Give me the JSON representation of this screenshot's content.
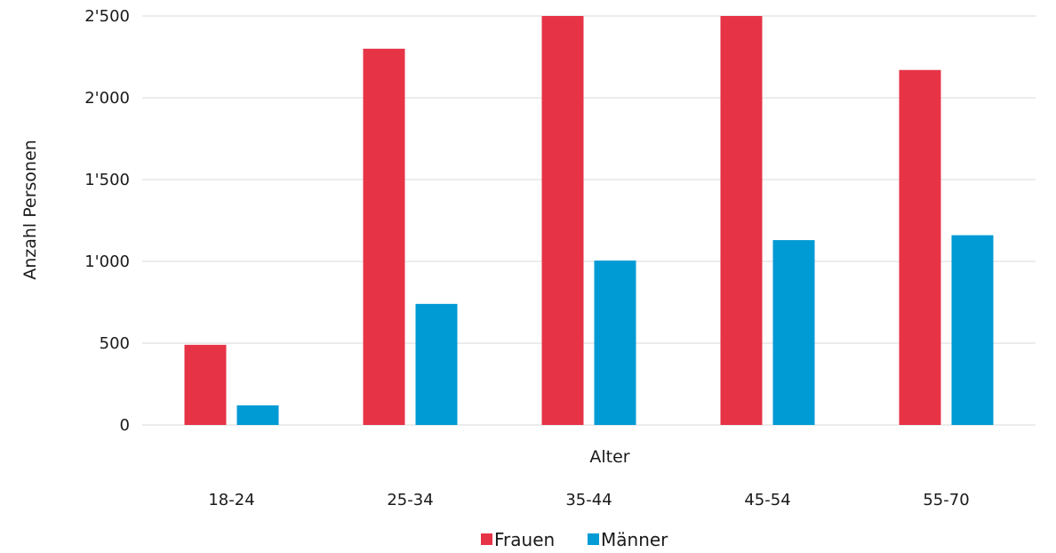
{
  "chart_data": {
    "type": "bar",
    "xlabel": "Alter",
    "ylabel": "Anzahl Personen",
    "categories": [
      "18-24",
      "25-34",
      "35-44",
      "45-54",
      "55-70"
    ],
    "series": [
      {
        "name": "Frauen",
        "color": "#e63346",
        "values": [
          490,
          2300,
          2500,
          2500,
          2170
        ]
      },
      {
        "name": "Männer",
        "color": "#009ad4",
        "values": [
          120,
          740,
          1005,
          1130,
          1160
        ]
      }
    ],
    "ylim": [
      0,
      2500
    ],
    "yticks": [
      0,
      500,
      1000,
      1500,
      2000,
      2500
    ],
    "ytick_labels": [
      "0",
      "500",
      "1'000",
      "1'500",
      "2'000",
      "2'500"
    ],
    "grid": true,
    "legend_position": "bottom-center"
  }
}
